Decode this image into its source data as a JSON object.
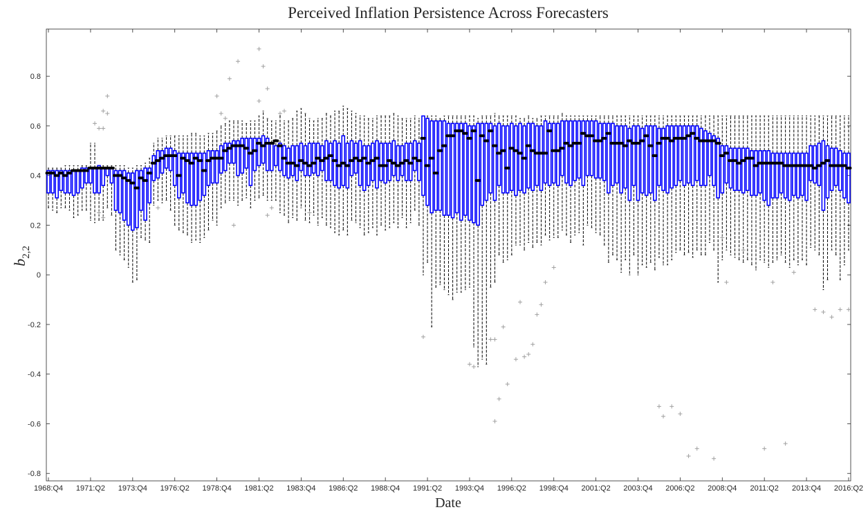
{
  "chart_data": {
    "type": "box",
    "title": "Perceived Inflation Persistence Across Forecasters",
    "xlabel": "Date",
    "ylabel": {
      "base": "b",
      "sub": "2,2"
    },
    "color": "#0000ff",
    "median_color": "#000000",
    "whisker_color": "#000000",
    "flier_color": "#a0a0a0",
    "ylim": [
      -0.83,
      0.99
    ],
    "yticks": [
      -0.8,
      -0.6,
      -0.4,
      -0.2,
      0,
      0.2,
      0.4,
      0.6,
      0.8
    ],
    "categories": [
      "1968:Q4",
      null,
      null,
      null,
      null,
      null,
      null,
      null,
      null,
      null,
      "1971:Q2",
      null,
      null,
      null,
      null,
      null,
      null,
      null,
      null,
      null,
      "1973:Q4",
      null,
      null,
      null,
      null,
      null,
      null,
      null,
      null,
      null,
      "1976:Q2",
      null,
      null,
      null,
      null,
      null,
      null,
      null,
      null,
      null,
      "1978:Q4",
      null,
      null,
      null,
      null,
      null,
      null,
      null,
      null,
      null,
      "1981:Q2",
      null,
      null,
      null,
      null,
      null,
      null,
      null,
      null,
      null,
      "1983:Q4",
      null,
      null,
      null,
      null,
      null,
      null,
      null,
      null,
      null,
      "1986:Q2",
      null,
      null,
      null,
      null,
      null,
      null,
      null,
      null,
      null,
      "1988:Q4",
      null,
      null,
      null,
      null,
      null,
      null,
      null,
      null,
      null,
      "1991:Q2",
      null,
      null,
      null,
      null,
      null,
      null,
      null,
      null,
      null,
      "1993:Q4",
      null,
      null,
      null,
      null,
      null,
      null,
      null,
      null,
      null,
      "1996:Q2",
      null,
      null,
      null,
      null,
      null,
      null,
      null,
      null,
      null,
      "1998:Q4",
      null,
      null,
      null,
      null,
      null,
      null,
      null,
      null,
      null,
      "2001:Q2",
      null,
      null,
      null,
      null,
      null,
      null,
      null,
      null,
      null,
      "2003:Q4",
      null,
      null,
      null,
      null,
      null,
      null,
      null,
      null,
      null,
      "2006:Q2",
      null,
      null,
      null,
      null,
      null,
      null,
      null,
      null,
      null,
      "2008:Q4",
      null,
      null,
      null,
      null,
      null,
      null,
      null,
      null,
      null,
      "2011:Q2",
      null,
      null,
      null,
      null,
      null,
      null,
      null,
      null,
      null,
      "2013:Q4",
      null,
      null,
      null,
      null,
      null,
      null,
      null,
      null,
      null,
      "2016:Q2"
    ],
    "median": [
      0.41,
      0.41,
      0.4,
      0.41,
      0.4,
      0.41,
      0.42,
      0.42,
      0.42,
      0.42,
      0.43,
      0.43,
      0.43,
      0.43,
      0.43,
      0.43,
      0.4,
      0.4,
      0.39,
      0.38,
      0.37,
      0.35,
      0.39,
      0.38,
      0.41,
      0.45,
      0.46,
      0.47,
      0.48,
      0.48,
      0.48,
      0.4,
      0.47,
      0.46,
      0.45,
      0.47,
      0.46,
      0.42,
      0.46,
      0.47,
      0.47,
      0.47,
      0.5,
      0.51,
      0.52,
      0.52,
      0.52,
      0.51,
      0.49,
      0.5,
      0.53,
      0.52,
      0.53,
      0.53,
      0.54,
      0.52,
      0.47,
      0.45,
      0.45,
      0.44,
      0.46,
      0.45,
      0.44,
      0.45,
      0.47,
      0.46,
      0.47,
      0.48,
      0.46,
      0.44,
      0.45,
      0.44,
      0.46,
      0.47,
      0.46,
      0.47,
      0.45,
      0.46,
      0.47,
      0.44,
      0.44,
      0.46,
      0.45,
      0.44,
      0.45,
      0.46,
      0.45,
      0.47,
      0.46,
      0.55,
      0.44,
      0.47,
      0.41,
      0.5,
      0.52,
      0.56,
      0.56,
      0.58,
      0.58,
      0.57,
      0.55,
      0.58,
      0.38,
      0.56,
      0.54,
      0.58,
      0.52,
      0.49,
      0.5,
      0.43,
      0.51,
      0.5,
      0.49,
      0.47,
      0.52,
      0.5,
      0.49,
      0.49,
      0.49,
      0.58,
      0.5,
      0.5,
      0.51,
      0.53,
      0.52,
      0.53,
      0.53,
      0.57,
      0.56,
      0.56,
      0.54,
      0.54,
      0.55,
      0.57,
      0.53,
      0.53,
      0.53,
      0.52,
      0.54,
      0.53,
      0.53,
      0.54,
      0.56,
      0.52,
      0.48,
      0.53,
      0.55,
      0.55,
      0.54,
      0.55,
      0.55,
      0.55,
      0.56,
      0.57,
      0.55,
      0.54,
      0.54,
      0.54,
      0.54,
      0.53,
      0.48,
      0.49,
      0.46,
      0.46,
      0.45,
      0.46,
      0.47,
      0.47,
      0.44,
      0.45,
      0.45,
      0.45,
      0.45,
      0.45,
      0.45,
      0.44,
      0.44,
      0.44,
      0.44,
      0.44,
      0.44,
      0.44,
      0.43,
      0.44,
      0.45,
      0.46,
      0.44,
      0.44,
      0.44,
      0.44,
      0.43
    ],
    "q1": [
      0.33,
      0.33,
      0.31,
      0.34,
      0.33,
      0.33,
      0.32,
      0.33,
      0.35,
      0.37,
      0.37,
      0.33,
      0.33,
      0.36,
      0.4,
      0.37,
      0.26,
      0.25,
      0.22,
      0.2,
      0.18,
      0.19,
      0.26,
      0.22,
      0.29,
      0.38,
      0.39,
      0.41,
      0.43,
      0.42,
      0.36,
      0.31,
      0.33,
      0.29,
      0.28,
      0.28,
      0.3,
      0.32,
      0.36,
      0.37,
      0.37,
      0.41,
      0.42,
      0.45,
      0.45,
      0.4,
      0.41,
      0.43,
      0.36,
      0.42,
      0.44,
      0.45,
      0.42,
      0.42,
      0.44,
      0.42,
      0.4,
      0.39,
      0.4,
      0.38,
      0.42,
      0.4,
      0.4,
      0.41,
      0.4,
      0.42,
      0.38,
      0.38,
      0.36,
      0.35,
      0.36,
      0.35,
      0.4,
      0.41,
      0.36,
      0.34,
      0.36,
      0.38,
      0.35,
      0.38,
      0.37,
      0.38,
      0.4,
      0.38,
      0.4,
      0.38,
      0.38,
      0.42,
      0.38,
      0.32,
      0.28,
      0.25,
      0.26,
      0.26,
      0.24,
      0.24,
      0.23,
      0.25,
      0.22,
      0.24,
      0.22,
      0.21,
      0.2,
      0.28,
      0.3,
      0.33,
      0.3,
      0.36,
      0.33,
      0.33,
      0.34,
      0.32,
      0.34,
      0.33,
      0.35,
      0.34,
      0.36,
      0.34,
      0.37,
      0.36,
      0.37,
      0.36,
      0.4,
      0.37,
      0.36,
      0.38,
      0.39,
      0.36,
      0.4,
      0.4,
      0.39,
      0.39,
      0.38,
      0.33,
      0.36,
      0.37,
      0.33,
      0.35,
      0.3,
      0.36,
      0.3,
      0.33,
      0.32,
      0.33,
      0.3,
      0.36,
      0.34,
      0.33,
      0.35,
      0.36,
      0.38,
      0.36,
      0.37,
      0.36,
      0.38,
      0.36,
      0.36,
      0.4,
      0.36,
      0.31,
      0.33,
      0.37,
      0.35,
      0.34,
      0.34,
      0.33,
      0.34,
      0.32,
      0.32,
      0.33,
      0.3,
      0.28,
      0.31,
      0.31,
      0.33,
      0.31,
      0.3,
      0.32,
      0.31,
      0.32,
      0.3,
      0.38,
      0.37,
      0.36,
      0.26,
      0.31,
      0.34,
      0.36,
      0.34,
      0.31,
      0.29
    ],
    "q3": [
      0.42,
      0.42,
      0.42,
      0.42,
      0.42,
      0.42,
      0.42,
      0.42,
      0.43,
      0.43,
      0.43,
      0.43,
      0.44,
      0.43,
      0.43,
      0.43,
      0.42,
      0.42,
      0.42,
      0.41,
      0.41,
      0.42,
      0.42,
      0.43,
      0.43,
      0.48,
      0.5,
      0.5,
      0.51,
      0.51,
      0.5,
      0.49,
      0.49,
      0.49,
      0.49,
      0.49,
      0.49,
      0.49,
      0.5,
      0.5,
      0.5,
      0.52,
      0.53,
      0.53,
      0.54,
      0.54,
      0.55,
      0.55,
      0.55,
      0.55,
      0.55,
      0.56,
      0.55,
      0.53,
      0.52,
      0.53,
      0.52,
      0.51,
      0.52,
      0.52,
      0.53,
      0.52,
      0.53,
      0.53,
      0.53,
      0.52,
      0.54,
      0.53,
      0.54,
      0.53,
      0.56,
      0.53,
      0.54,
      0.53,
      0.54,
      0.52,
      0.52,
      0.53,
      0.54,
      0.53,
      0.53,
      0.53,
      0.54,
      0.52,
      0.52,
      0.53,
      0.53,
      0.54,
      0.53,
      0.64,
      0.63,
      0.62,
      0.62,
      0.62,
      0.62,
      0.61,
      0.61,
      0.61,
      0.61,
      0.61,
      0.6,
      0.6,
      0.61,
      0.61,
      0.61,
      0.61,
      0.6,
      0.61,
      0.6,
      0.6,
      0.61,
      0.6,
      0.61,
      0.6,
      0.61,
      0.61,
      0.6,
      0.6,
      0.62,
      0.61,
      0.61,
      0.61,
      0.62,
      0.62,
      0.62,
      0.62,
      0.62,
      0.62,
      0.62,
      0.62,
      0.62,
      0.61,
      0.61,
      0.61,
      0.61,
      0.6,
      0.6,
      0.6,
      0.59,
      0.6,
      0.6,
      0.59,
      0.6,
      0.6,
      0.6,
      0.59,
      0.59,
      0.6,
      0.6,
      0.6,
      0.6,
      0.6,
      0.6,
      0.6,
      0.6,
      0.59,
      0.58,
      0.57,
      0.56,
      0.55,
      0.52,
      0.52,
      0.51,
      0.51,
      0.51,
      0.51,
      0.51,
      0.5,
      0.5,
      0.5,
      0.5,
      0.5,
      0.49,
      0.49,
      0.49,
      0.49,
      0.49,
      0.49,
      0.49,
      0.49,
      0.49,
      0.52,
      0.52,
      0.53,
      0.54,
      0.52,
      0.51,
      0.51,
      0.5,
      0.49,
      0.49
    ],
    "whislo": [
      0.27,
      0.26,
      0.25,
      0.27,
      0.27,
      0.26,
      0.23,
      0.24,
      0.26,
      0.26,
      0.22,
      0.21,
      0.22,
      0.22,
      0.27,
      0.24,
      0.1,
      0.08,
      0.06,
      0.03,
      -0.03,
      -0.02,
      0.15,
      0.14,
      0.13,
      0.28,
      0.3,
      0.29,
      0.3,
      0.26,
      0.2,
      0.18,
      0.17,
      0.16,
      0.13,
      0.14,
      0.13,
      0.15,
      0.18,
      0.22,
      0.2,
      0.27,
      0.29,
      0.3,
      0.3,
      0.28,
      0.3,
      0.31,
      0.27,
      0.3,
      0.31,
      0.32,
      0.3,
      0.3,
      0.3,
      0.25,
      0.24,
      0.21,
      0.23,
      0.22,
      0.27,
      0.22,
      0.21,
      0.24,
      0.2,
      0.23,
      0.2,
      0.19,
      0.17,
      0.16,
      0.18,
      0.16,
      0.22,
      0.21,
      0.19,
      0.16,
      0.17,
      0.19,
      0.16,
      0.2,
      0.18,
      0.19,
      0.21,
      0.19,
      0.23,
      0.19,
      0.21,
      0.26,
      0.2,
      0.0,
      0.05,
      -0.21,
      -0.05,
      -0.04,
      -0.06,
      -0.08,
      -0.1,
      -0.07,
      -0.07,
      -0.06,
      -0.05,
      -0.29,
      -0.37,
      -0.34,
      -0.36,
      -0.05,
      -0.03,
      0.08,
      0.05,
      0.06,
      0.08,
      0.12,
      0.12,
      0.1,
      0.13,
      0.11,
      0.13,
      0.12,
      0.16,
      0.14,
      0.15,
      0.15,
      0.18,
      0.16,
      0.13,
      0.16,
      0.17,
      0.12,
      0.2,
      0.19,
      0.17,
      0.16,
      0.12,
      0.05,
      0.08,
      0.06,
      0.01,
      0.06,
      0.0,
      0.08,
      0.0,
      0.04,
      0.03,
      0.05,
      0.02,
      0.07,
      0.04,
      0.04,
      0.06,
      0.09,
      0.1,
      0.08,
      0.09,
      0.07,
      0.1,
      0.08,
      0.08,
      0.13,
      0.1,
      -0.03,
      0.06,
      0.1,
      0.08,
      0.07,
      0.06,
      0.05,
      0.06,
      0.04,
      0.02,
      0.06,
      0.05,
      0.03,
      0.05,
      0.06,
      0.08,
      0.05,
      0.03,
      0.06,
      0.04,
      0.06,
      0.04,
      0.11,
      0.1,
      0.08,
      -0.06,
      -0.02,
      0.1,
      0.08,
      -0.02,
      0.04,
      0.1
    ],
    "whishi": [
      0.43,
      0.43,
      0.43,
      0.43,
      0.44,
      0.44,
      0.44,
      0.44,
      0.44,
      0.44,
      0.53,
      0.53,
      0.44,
      0.44,
      0.44,
      0.44,
      0.44,
      0.44,
      0.44,
      0.43,
      0.43,
      0.44,
      0.44,
      0.45,
      0.47,
      0.53,
      0.55,
      0.55,
      0.56,
      0.56,
      0.56,
      0.56,
      0.56,
      0.56,
      0.57,
      0.57,
      0.56,
      0.56,
      0.57,
      0.57,
      0.58,
      0.6,
      0.61,
      0.62,
      0.62,
      0.62,
      0.62,
      0.61,
      0.62,
      0.62,
      0.64,
      0.66,
      0.63,
      0.62,
      0.62,
      0.64,
      0.62,
      0.62,
      0.63,
      0.66,
      0.67,
      0.65,
      0.63,
      0.62,
      0.63,
      0.63,
      0.65,
      0.64,
      0.66,
      0.66,
      0.68,
      0.67,
      0.66,
      0.65,
      0.64,
      0.64,
      0.63,
      0.63,
      0.64,
      0.64,
      0.64,
      0.64,
      0.65,
      0.64,
      0.63,
      0.63,
      0.63,
      0.64,
      0.63,
      0.64,
      0.64,
      0.64,
      0.64,
      0.63,
      0.64,
      0.64,
      0.64,
      0.64,
      0.64,
      0.64,
      0.64,
      0.64,
      0.63,
      0.64,
      0.64,
      0.64,
      0.65,
      0.64,
      0.64,
      0.64,
      0.64,
      0.64,
      0.63,
      0.63,
      0.64,
      0.63,
      0.63,
      0.64,
      0.64,
      0.64,
      0.64,
      0.64,
      0.65,
      0.64,
      0.64,
      0.64,
      0.64,
      0.64,
      0.64,
      0.64,
      0.64,
      0.64,
      0.64,
      0.64,
      0.64,
      0.64,
      0.64,
      0.64,
      0.64,
      0.64,
      0.64,
      0.64,
      0.64,
      0.64,
      0.64,
      0.64,
      0.64,
      0.64,
      0.64,
      0.64,
      0.64,
      0.64,
      0.64,
      0.64,
      0.64,
      0.64,
      0.64,
      0.64,
      0.64,
      0.64,
      0.64,
      0.64,
      0.64,
      0.64,
      0.64,
      0.64,
      0.64,
      0.64,
      0.64,
      0.64,
      0.64,
      0.64,
      0.64,
      0.64,
      0.64,
      0.64,
      0.64,
      0.64,
      0.64,
      0.64,
      0.64,
      0.64,
      0.64,
      0.64,
      0.64,
      0.64,
      0.64,
      0.64,
      0.64,
      0.64,
      0.64
    ],
    "fliers": {
      "x": [
        11,
        12,
        13,
        14,
        14,
        13,
        12,
        13,
        26,
        40,
        41,
        42,
        43,
        44,
        45,
        50,
        51,
        52,
        50,
        52,
        53,
        55,
        56,
        62,
        89,
        100,
        101,
        105,
        106,
        106,
        107,
        108,
        109,
        111,
        112,
        113,
        114,
        115,
        116,
        117,
        118,
        120,
        145,
        146,
        148,
        150,
        152,
        154,
        158,
        170,
        175,
        177,
        182,
        184,
        186,
        188,
        190,
        160,
        165,
        161,
        172
      ],
      "y": [
        0.61,
        0.59,
        0.66,
        0.72,
        0.65,
        0.59,
        0.25,
        0.23,
        0.27,
        0.72,
        0.65,
        0.63,
        0.79,
        0.2,
        0.86,
        0.91,
        0.84,
        0.75,
        0.7,
        0.24,
        0.27,
        0.65,
        0.66,
        0.25,
        -0.25,
        -0.36,
        -0.37,
        -0.26,
        -0.26,
        -0.59,
        -0.5,
        -0.21,
        -0.44,
        -0.34,
        -0.11,
        -0.33,
        -0.32,
        -0.28,
        -0.16,
        -0.12,
        -0.03,
        0.03,
        -0.53,
        -0.57,
        -0.53,
        -0.56,
        -0.73,
        -0.7,
        -0.74,
        -0.7,
        -0.68,
        0.01,
        -0.14,
        -0.15,
        -0.17,
        -0.14,
        -0.14,
        0.15,
        0.1,
        -0.03,
        -0.03
      ]
    }
  }
}
